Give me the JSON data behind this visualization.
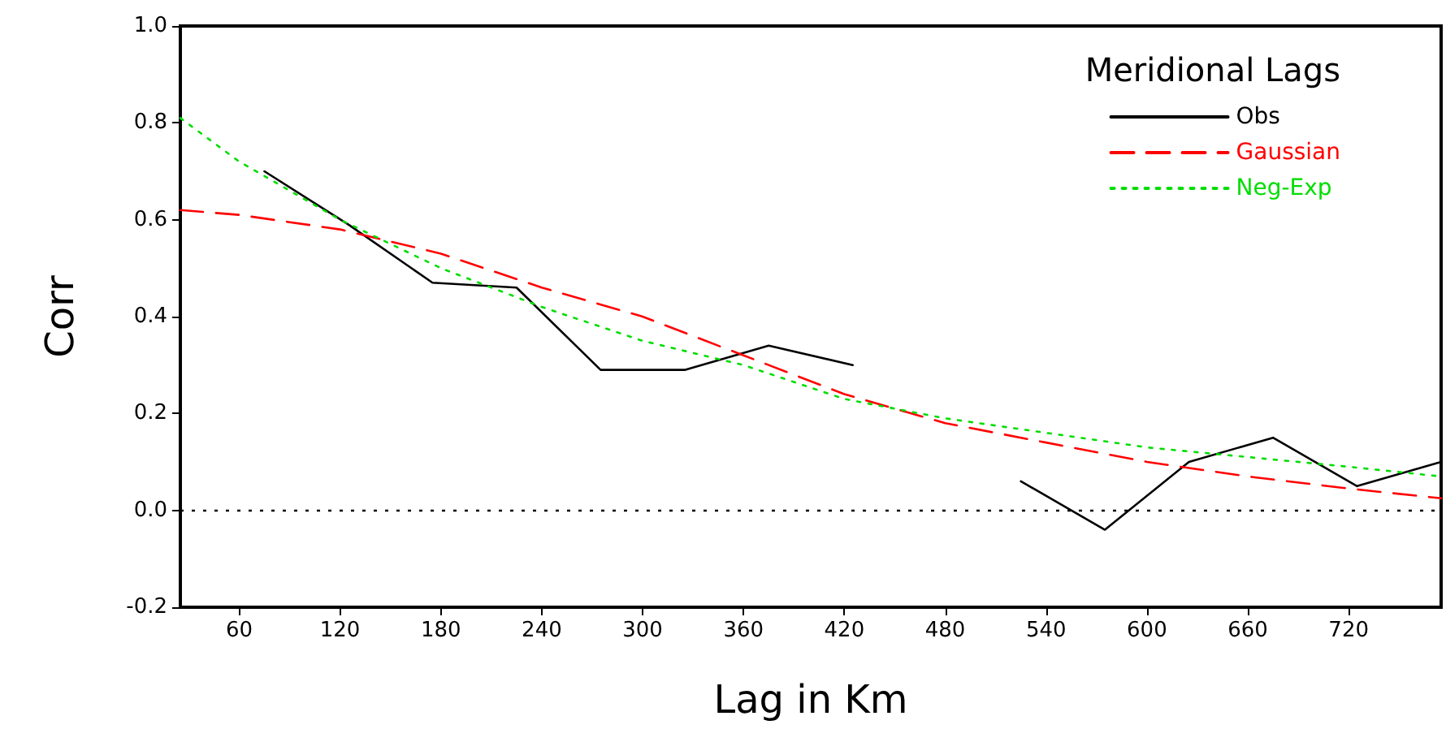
{
  "chart_data": {
    "type": "line",
    "xlabel": "Lag in Km",
    "ylabel": "Corr",
    "legend_title": "Meridional Lags",
    "xlim": [
      25,
      775
    ],
    "xticks": [
      60,
      120,
      180,
      240,
      300,
      360,
      420,
      480,
      540,
      600,
      660,
      720
    ],
    "ylim": [
      -0.2,
      1.0
    ],
    "yticks": [
      {
        "value": -0.2,
        "label": "-0.2"
      },
      {
        "value": 0,
        "label": "0.0"
      },
      {
        "value": 0.2,
        "label": "0.2"
      },
      {
        "value": 0.4,
        "label": "0.4"
      },
      {
        "value": 0.6,
        "label": "0.6"
      },
      {
        "value": 0.8,
        "label": "0.8"
      },
      {
        "value": 1.0,
        "label": "1.0"
      }
    ],
    "grid": false,
    "legend": "top right",
    "marker": "none",
    "ref_lines": [
      {
        "axis": "y",
        "value": 0,
        "color": "#000000",
        "line_style": "dotted"
      }
    ],
    "series": [
      {
        "name": "Obs",
        "color": "#000000",
        "line_style": "solid",
        "x": [
          75,
          125,
          175,
          225,
          275,
          325,
          375,
          425,
          475,
          525,
          575,
          625,
          675,
          725,
          775
        ],
        "values": [
          0.7,
          0.59,
          0.47,
          0.46,
          0.29,
          0.29,
          0.34,
          0.3,
          null,
          0.06,
          -0.04,
          0.1,
          0.15,
          0.05,
          0.1
        ]
      },
      {
        "name": "Gaussian",
        "color": "#ff0000",
        "line_style": "dashed",
        "x": [
          25,
          60,
          120,
          180,
          240,
          300,
          360,
          420,
          480,
          540,
          600,
          660,
          720,
          775
        ],
        "values": [
          0.62,
          0.61,
          0.58,
          0.53,
          0.46,
          0.4,
          0.32,
          0.24,
          0.18,
          0.14,
          0.1,
          0.07,
          0.045,
          0.025
        ]
      },
      {
        "name": "Neg-Exp",
        "color": "#00dd00",
        "line_style": "dotted",
        "x": [
          25,
          60,
          120,
          180,
          240,
          300,
          360,
          420,
          480,
          540,
          600,
          660,
          720,
          775
        ],
        "values": [
          0.81,
          0.72,
          0.6,
          0.5,
          0.42,
          0.35,
          0.3,
          0.23,
          0.19,
          0.16,
          0.13,
          0.11,
          0.09,
          0.07
        ]
      }
    ]
  }
}
